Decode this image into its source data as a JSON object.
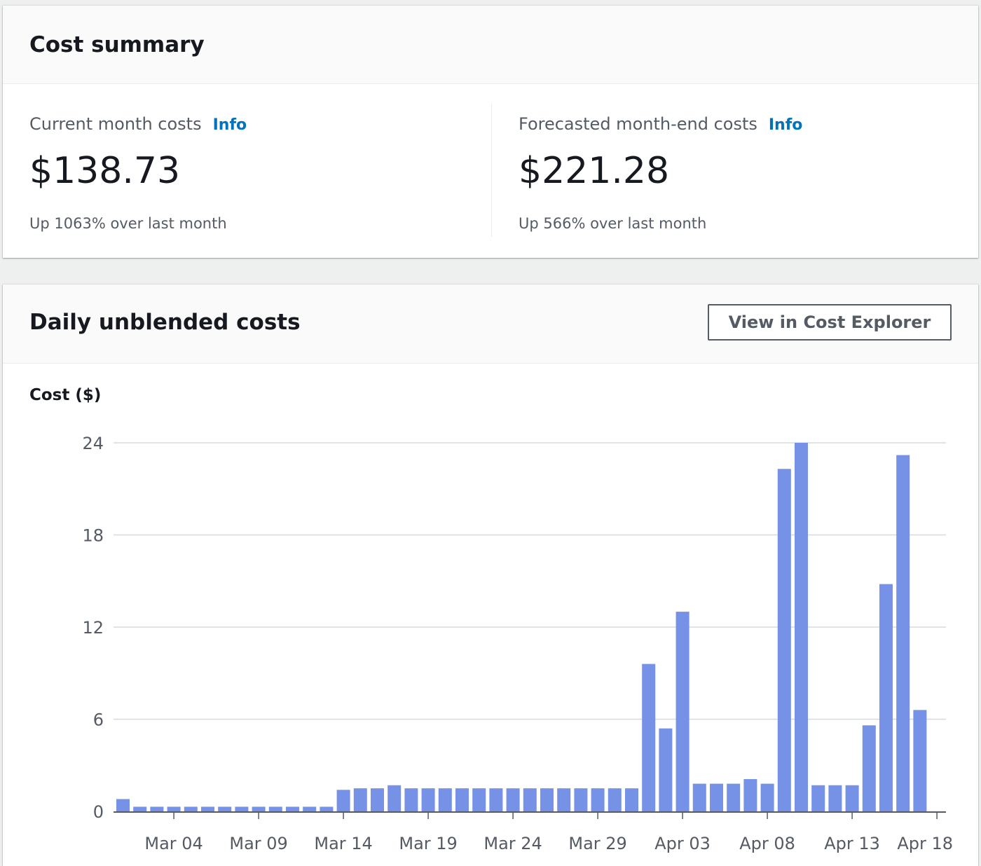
{
  "summary": {
    "title": "Cost summary",
    "current": {
      "label": "Current month costs",
      "info": "Info",
      "value": "$138.73",
      "sub": "Up 1063% over last month"
    },
    "forecast": {
      "label": "Forecasted month-end costs",
      "info": "Info",
      "value": "$221.28",
      "sub": "Up 566% over last month"
    }
  },
  "daily": {
    "title": "Daily unblended costs",
    "button": "View in Cost Explorer",
    "yaxis_title": "Cost ($)"
  },
  "colors": {
    "bar": "#7592e6",
    "grid": "#d5dbdb",
    "link": "#0073bb"
  },
  "chart_data": {
    "type": "bar",
    "title": "",
    "ylabel": "Cost ($)",
    "ylim": [
      0,
      24
    ],
    "yticks": [
      0,
      6,
      12,
      18,
      24
    ],
    "xtick_labels": [
      "Mar 04",
      "Mar 09",
      "Mar 14",
      "Mar 19",
      "Mar 24",
      "Mar 29",
      "Apr 03",
      "Apr 08",
      "Apr 13",
      "Apr 18"
    ],
    "xtick_label_indices": [
      3,
      8,
      13,
      18,
      23,
      28,
      33,
      38,
      43,
      48
    ],
    "grid": true,
    "categories": [
      "Mar 01",
      "Mar 02",
      "Mar 03",
      "Mar 04",
      "Mar 05",
      "Mar 06",
      "Mar 07",
      "Mar 08",
      "Mar 09",
      "Mar 10",
      "Mar 11",
      "Mar 12",
      "Mar 13",
      "Mar 14",
      "Mar 15",
      "Mar 16",
      "Mar 17",
      "Mar 18",
      "Mar 19",
      "Mar 20",
      "Mar 21",
      "Mar 22",
      "Mar 23",
      "Mar 24",
      "Mar 25",
      "Mar 26",
      "Mar 27",
      "Mar 28",
      "Mar 29",
      "Mar 30",
      "Mar 31",
      "Apr 01",
      "Apr 02",
      "Apr 03",
      "Apr 04",
      "Apr 05",
      "Apr 06",
      "Apr 07",
      "Apr 08",
      "Apr 09",
      "Apr 10",
      "Apr 11",
      "Apr 12",
      "Apr 13",
      "Apr 14",
      "Apr 15",
      "Apr 16",
      "Apr 17",
      "Apr 18"
    ],
    "values": [
      0.8,
      0.3,
      0.3,
      0.3,
      0.3,
      0.3,
      0.3,
      0.3,
      0.3,
      0.3,
      0.3,
      0.3,
      0.3,
      1.4,
      1.5,
      1.5,
      1.7,
      1.5,
      1.5,
      1.5,
      1.5,
      1.5,
      1.5,
      1.5,
      1.5,
      1.5,
      1.5,
      1.5,
      1.5,
      1.5,
      1.5,
      9.6,
      5.4,
      13.0,
      1.8,
      1.8,
      1.8,
      2.1,
      1.8,
      22.3,
      24.0,
      1.7,
      1.7,
      1.7,
      5.6,
      14.8,
      23.2,
      6.6,
      0
    ]
  }
}
